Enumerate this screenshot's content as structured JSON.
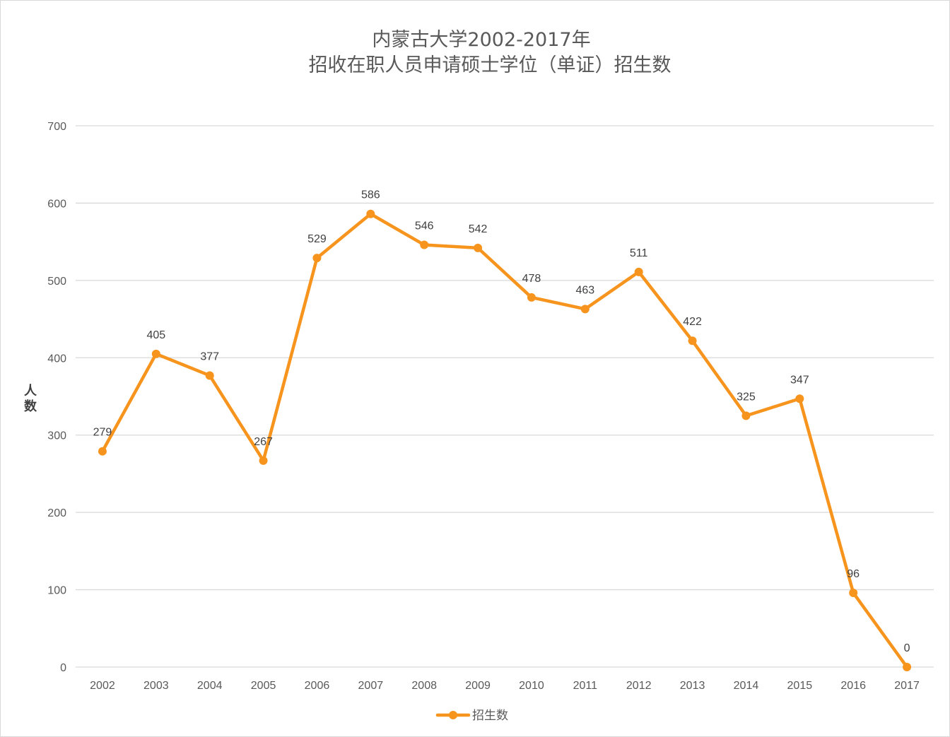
{
  "chart_data": {
    "type": "line",
    "title_lines": [
      "内蒙古大学2002-2017年",
      "招收在职人员申请硕士学位（单证）招生数"
    ],
    "ylabel": "人数",
    "xlabel": "",
    "categories": [
      "2002",
      "2003",
      "2004",
      "2005",
      "2006",
      "2007",
      "2008",
      "2009",
      "2010",
      "2011",
      "2012",
      "2013",
      "2014",
      "2015",
      "2016",
      "2017"
    ],
    "series": [
      {
        "name": "招生数",
        "values": [
          279,
          405,
          377,
          267,
          529,
          586,
          546,
          542,
          478,
          463,
          511,
          422,
          325,
          347,
          96,
          0
        ],
        "color": "#F7941D"
      }
    ],
    "ylim": [
      0,
      700
    ],
    "yticks": [
      0,
      100,
      200,
      300,
      400,
      500,
      600,
      700
    ],
    "grid": true,
    "data_labels": true,
    "legend_position": "bottom",
    "colors": {
      "gridline": "#d9d9d9",
      "text": "#595959",
      "series": "#F7941D"
    }
  }
}
